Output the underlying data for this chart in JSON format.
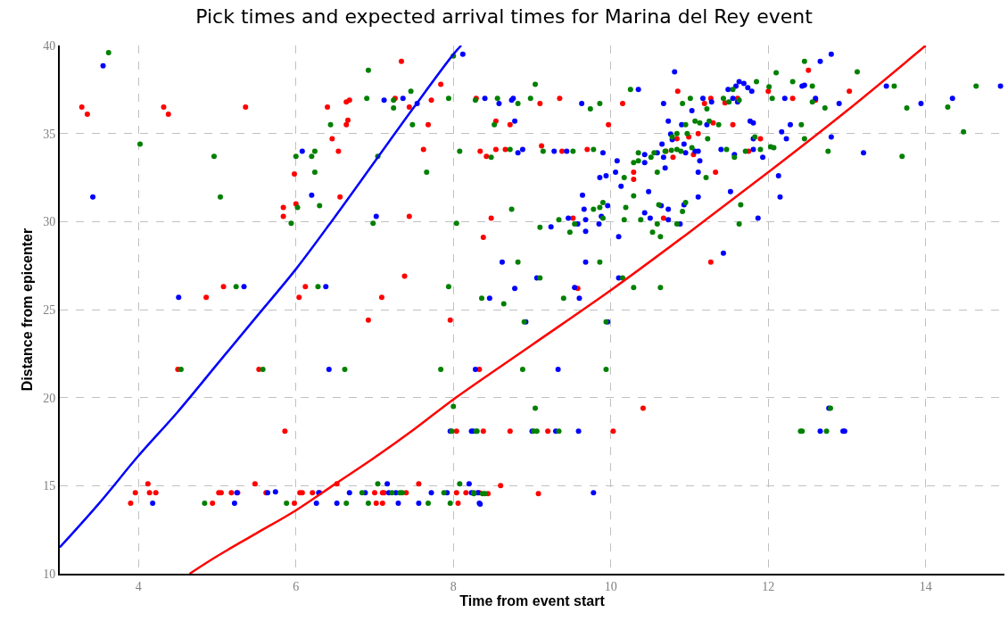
{
  "chart_data": {
    "type": "scatter",
    "title": "Pick times and expected arrival times for Marina del Rey event",
    "xlabel": "Time from event start",
    "ylabel": "Distance from epicenter",
    "xlim": [
      3,
      15
    ],
    "ylim": [
      10,
      40
    ],
    "xticks": [
      4,
      6,
      8,
      10,
      12,
      14
    ],
    "yticks": [
      10,
      15,
      20,
      25,
      30,
      35,
      40
    ],
    "grid": true,
    "marker": "circle",
    "series": [
      {
        "color": "#ff0000",
        "x": [
          3.28,
          3.35,
          4.32,
          4.38,
          5.36,
          6.4,
          6.64,
          6.68,
          6.66,
          6.64,
          6.46,
          6.54,
          5.98,
          6.56,
          5.84,
          5.84,
          6.0,
          7.34,
          7.26,
          7.44,
          7.72,
          7.84,
          7.68,
          7.62,
          7.44,
          7.38,
          7.09,
          6.12,
          6.04,
          5.08,
          4.86,
          6.92,
          7.96,
          8.29,
          8.54,
          8.72,
          9.1,
          9.35,
          10.15,
          9.97,
          10.85,
          11.19,
          11.27,
          11.45,
          11.61,
          11.3,
          11.55,
          12.0,
          12.51,
          12.31,
          12.6,
          13.03,
          8.34,
          8.42,
          8.54,
          8.66,
          9.12,
          9.38,
          9.7,
          10.29,
          10.29,
          10.84,
          10.99,
          11.11,
          11.05,
          10.79,
          10.7,
          11.33,
          11.75,
          11.9,
          8.48,
          8.38,
          9.52,
          10.67,
          11.27,
          9.58,
          4.5,
          5.53,
          5.86,
          8.04,
          8.33,
          3.9,
          3.96,
          4.12,
          4.14,
          4.22,
          4.94,
          5.02,
          5.05,
          5.18,
          5.26,
          5.48,
          5.62,
          5.98,
          6.05,
          6.08,
          6.21,
          6.3,
          6.52,
          7.0,
          7.02,
          7.1,
          7.1,
          7.12,
          7.4,
          7.56,
          8.04,
          8.06,
          8.16,
          8.33,
          8.38,
          8.72,
          9.2,
          10.03,
          10.41,
          8.6,
          8.44,
          9.08
        ],
        "values": [
          36.5,
          36.1,
          36.5,
          36.1,
          36.5,
          36.5,
          36.8,
          36.9,
          35.75,
          35.5,
          34.7,
          34.0,
          32.7,
          31.4,
          30.8,
          30.3,
          31.0,
          39.1,
          37.0,
          36.5,
          36.9,
          37.8,
          35.5,
          34.1,
          30.3,
          26.9,
          25.7,
          26.3,
          25.7,
          26.3,
          25.7,
          24.4,
          24.4,
          37.0,
          35.7,
          35.5,
          36.7,
          37.0,
          36.7,
          35.5,
          37.4,
          36.7,
          37.0,
          36.75,
          37.0,
          35.6,
          35.5,
          37.4,
          38.6,
          37.0,
          36.9,
          37.4,
          34.0,
          33.7,
          34.1,
          34.1,
          34.3,
          34.0,
          34.1,
          32.8,
          32.4,
          34.7,
          34.8,
          35.0,
          33.8,
          33.65,
          34.0,
          32.8,
          34.0,
          34.7,
          30.2,
          29.1,
          30.2,
          30.2,
          27.7,
          26.2,
          21.6,
          21.6,
          18.1,
          18.1,
          21.6,
          14.0,
          14.6,
          15.1,
          14.6,
          14.6,
          14.0,
          14.6,
          14.6,
          14.6,
          14.6,
          15.1,
          14.6,
          14.0,
          14.6,
          14.6,
          14.6,
          14.6,
          15.1,
          14.6,
          14.0,
          14.0,
          14.6,
          14.6,
          14.6,
          15.1,
          14.6,
          14.0,
          14.6,
          14.6,
          18.1,
          18.1,
          18.1,
          18.1,
          19.4,
          15.0,
          14.55,
          14.55
        ]
      },
      {
        "color": "#0000ff",
        "x": [
          3.55,
          3.42,
          6.08,
          6.2,
          7.12,
          7.36,
          7.54,
          8.12,
          7.02,
          4.51,
          5.34,
          6.38,
          8.4,
          8.58,
          8.74,
          8.76,
          9.63,
          10.35,
          10.81,
          10.67,
          11.17,
          11.28,
          11.49,
          11.59,
          11.63,
          11.69,
          11.74,
          11.79,
          11.55,
          11.61,
          12.21,
          12.43,
          12.46,
          12.66,
          12.8,
          12.6,
          12.9,
          13.5,
          13.94,
          14.34,
          14.95,
          8.78,
          8.82,
          8.88,
          9.28,
          9.44,
          9.9,
          10.08,
          10.06,
          9.94,
          9.86,
          10.13,
          10.43,
          10.43,
          10.59,
          10.67,
          10.69,
          10.65,
          10.73,
          10.76,
          10.78,
          10.9,
          10.93,
          10.95,
          11.03,
          11.07,
          11.11,
          11.13,
          11.11,
          11.11,
          11.22,
          11.4,
          11.57,
          11.77,
          11.81,
          11.81,
          11.81,
          11.93,
          12.17,
          12.23,
          12.28,
          12.8,
          13.21,
          12.13,
          12.15,
          11.52,
          11.87,
          11.43,
          9.64,
          9.66,
          9.96,
          10.48,
          10.64,
          10.73,
          10.43,
          10.5,
          10.73,
          10.93,
          10.88,
          9.88,
          9.85,
          9.68,
          9.58,
          9.46,
          9.24,
          9.68,
          10.1,
          8.62,
          9.68,
          9.06,
          8.78,
          9.54,
          10.1,
          8.46,
          9.6,
          6.42,
          7.96,
          8.23,
          4.18,
          5.22,
          5.25,
          5.64,
          5.74,
          6.26,
          6.29,
          6.52,
          6.68,
          6.88,
          7.16,
          7.18,
          7.27,
          7.3,
          7.56,
          7.72,
          7.92,
          8.2,
          8.23,
          8.33,
          8.92,
          9.96,
          8.28,
          9.33,
          8.25,
          9.0,
          9.3,
          9.59,
          12.77,
          12.66,
          12.95,
          12.97,
          8.31,
          8.34,
          9.78
        ],
        "values": [
          38.85,
          31.4,
          34.0,
          31.5,
          36.9,
          37.0,
          36.7,
          39.5,
          30.3,
          25.7,
          26.3,
          26.3,
          37.0,
          36.7,
          36.9,
          37.0,
          36.7,
          37.5,
          38.5,
          36.7,
          37.0,
          36.8,
          37.5,
          37.7,
          37.95,
          37.85,
          37.6,
          37.4,
          37.0,
          36.8,
          37.0,
          37.7,
          37.75,
          39.1,
          39.5,
          37.0,
          36.7,
          37.7,
          36.7,
          37.0,
          37.7,
          35.7,
          33.9,
          34.1,
          34.0,
          34.0,
          33.9,
          33.45,
          32.8,
          32.6,
          32.5,
          32.0,
          33.8,
          33.35,
          33.9,
          33.65,
          33.05,
          34.4,
          35.7,
          34.97,
          34.66,
          35.5,
          34.4,
          33.9,
          36.3,
          34.0,
          34.0,
          33.45,
          32.8,
          31.4,
          35.5,
          34.1,
          33.8,
          35.7,
          35.6,
          34.7,
          34.1,
          33.65,
          35.1,
          34.7,
          35.5,
          34.8,
          33.9,
          32.6,
          31.4,
          31.7,
          30.2,
          28.2,
          31.5,
          30.7,
          30.9,
          31.7,
          30.9,
          30.7,
          30.5,
          30.2,
          30.1,
          30.95,
          29.87,
          30.3,
          29.87,
          30.1,
          29.87,
          30.2,
          29.7,
          29.45,
          29.14,
          27.7,
          27.7,
          26.8,
          26.2,
          26.26,
          26.8,
          25.65,
          25.65,
          21.6,
          18.1,
          18.1,
          14.0,
          14.0,
          14.6,
          14.6,
          14.65,
          14.0,
          14.6,
          14.0,
          14.6,
          14.6,
          15.1,
          14.6,
          14.6,
          14.0,
          14.0,
          14.6,
          14.6,
          15.1,
          14.6,
          14.0,
          24.3,
          24.3,
          21.6,
          21.6,
          18.1,
          18.1,
          18.1,
          18.1,
          19.4,
          18.1,
          18.1,
          18.1,
          14.6,
          13.95,
          14.6
        ]
      },
      {
        "color": "#008000",
        "x": [
          3.62,
          4.02,
          4.96,
          5.04,
          5.94,
          6.0,
          6.02,
          6.2,
          6.24,
          6.24,
          6.3,
          6.44,
          6.92,
          6.9,
          7.24,
          7.24,
          7.46,
          7.48,
          7.04,
          7.66,
          7.94,
          8.0,
          8.08,
          8.28,
          6.98,
          8.04,
          6.28,
          5.24,
          7.94,
          8.56,
          8.82,
          8.98,
          9.04,
          9.74,
          9.86,
          10.25,
          8.52,
          8.48,
          8.72,
          9.14,
          9.52,
          9.78,
          10.91,
          11.01,
          11.22,
          11.43,
          11.5,
          11.55,
          11.63,
          11.85,
          12.01,
          12.05,
          12.1,
          12.31,
          12.46,
          12.56,
          12.56,
          12.72,
          13.13,
          13.6,
          13.76,
          14.28,
          14.64,
          14.48,
          13.7,
          12.76,
          12.46,
          12.42,
          12.03,
          12.07,
          11.9,
          11.83,
          11.71,
          11.57,
          11.47,
          11.37,
          11.25,
          11.13,
          11.07,
          10.95,
          10.97,
          11.03,
          10.84,
          10.78,
          10.84,
          10.77,
          10.89,
          10.69,
          10.55,
          10.51,
          10.35,
          10.35,
          10.29,
          10.17,
          10.59,
          11.21,
          11.23,
          10.29,
          10.19,
          10.17,
          10.38,
          10.61,
          10.59,
          10.53,
          10.63,
          10.84,
          10.91,
          10.95,
          11.65,
          11.63,
          9.9,
          9.86,
          9.78,
          9.9,
          9.54,
          9.34,
          9.1,
          9.48,
          8.74,
          8.82,
          9.86,
          9.1,
          10.15,
          10.29,
          10.63,
          8.36,
          8.64,
          9.4,
          4.54,
          5.58,
          6.62,
          7.84,
          8.0,
          7.98,
          8.3,
          4.84,
          5.88,
          6.64,
          6.84,
          6.92,
          7.04,
          7.22,
          7.32,
          7.35,
          7.68,
          7.88,
          7.96,
          8.08,
          8.26,
          8.9,
          9.94,
          8.88,
          9.94,
          9.04,
          12.79,
          8.29,
          9.02,
          9.06,
          9.34,
          12.41,
          12.43,
          12.74,
          8.26,
          8.37,
          8.4
        ],
        "values": [
          39.6,
          34.4,
          33.7,
          31.4,
          29.9,
          33.7,
          30.8,
          33.7,
          34.0,
          32.8,
          30.9,
          35.5,
          38.6,
          37.0,
          36.9,
          36.45,
          37.4,
          35.5,
          33.7,
          32.8,
          37.0,
          39.4,
          34.0,
          36.9,
          29.9,
          29.9,
          26.3,
          26.3,
          26.3,
          37.0,
          36.7,
          37.0,
          37.8,
          36.4,
          36.7,
          37.5,
          35.5,
          33.65,
          34.1,
          34.0,
          34.0,
          34.1,
          36.7,
          37.0,
          36.4,
          37.0,
          36.8,
          37.5,
          36.9,
          37.95,
          37.65,
          37.0,
          38.45,
          37.95,
          39.1,
          37.7,
          36.8,
          36.45,
          38.5,
          37.7,
          36.45,
          36.5,
          37.7,
          35.1,
          33.7,
          34.0,
          34.7,
          35.5,
          34.25,
          34.2,
          34.1,
          34.8,
          34.0,
          33.65,
          34.1,
          35.5,
          35.7,
          35.6,
          35.7,
          35.5,
          35.0,
          34.2,
          35.0,
          34.8,
          34.1,
          34.05,
          34.0,
          34.0,
          33.9,
          33.65,
          33.9,
          33.45,
          33.35,
          32.5,
          32.8,
          32.5,
          34.7,
          31.46,
          30.8,
          30.1,
          30.1,
          30.95,
          29.87,
          29.4,
          29.14,
          29.87,
          30.58,
          31.08,
          30.95,
          29.87,
          31.08,
          30.8,
          30.7,
          30.2,
          29.87,
          30.1,
          29.67,
          29.4,
          30.7,
          27.7,
          27.7,
          26.8,
          26.8,
          26.26,
          26.26,
          25.65,
          25.33,
          25.65,
          21.6,
          21.6,
          21.6,
          21.6,
          19.5,
          18.1,
          18.1,
          14.0,
          14.0,
          14.0,
          14.6,
          14.0,
          15.1,
          14.6,
          14.6,
          14.6,
          14.0,
          14.6,
          14.0,
          15.1,
          14.6,
          24.3,
          24.3,
          21.6,
          21.6,
          19.4,
          19.4,
          18.1,
          18.1,
          18.1,
          18.1,
          18.1,
          18.1,
          18.1,
          14.55,
          14.55,
          14.55
        ]
      },
      {
        "type": "line",
        "color": "#0000ff",
        "line_style": "solid",
        "marker": "none",
        "x": [
          3.0,
          3.5,
          4.0,
          4.5,
          5.0,
          5.5,
          6.0,
          6.5,
          7.0,
          7.5,
          8.0,
          8.1
        ],
        "values": [
          11.5,
          14.0,
          16.7,
          19.2,
          21.9,
          24.6,
          27.3,
          30.3,
          33.4,
          36.5,
          39.5,
          40.0
        ]
      },
      {
        "type": "line",
        "color": "#ff0000",
        "line_style": "solid",
        "marker": "none",
        "x": [
          4.65,
          5.0,
          5.5,
          6.0,
          6.5,
          7.0,
          7.5,
          8.0,
          9.0,
          10.0,
          11.0,
          12.0,
          13.0,
          14.0
        ],
        "values": [
          10.0,
          11.0,
          12.3,
          13.6,
          15.1,
          16.6,
          18.2,
          19.9,
          23.0,
          26.1,
          29.4,
          32.8,
          36.3,
          40.0
        ]
      }
    ]
  }
}
